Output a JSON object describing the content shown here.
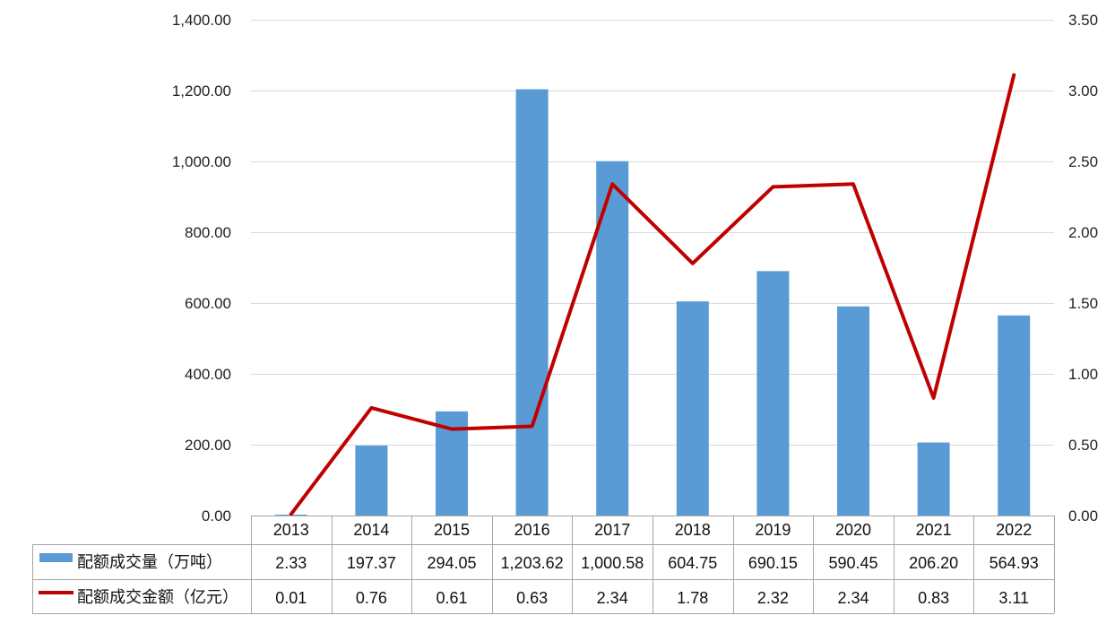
{
  "chart_data": {
    "type": "bar",
    "categories": [
      "2013",
      "2014",
      "2015",
      "2016",
      "2017",
      "2018",
      "2019",
      "2020",
      "2021",
      "2022"
    ],
    "series": [
      {
        "name": "配额成交量（万吨）",
        "type": "bar",
        "axis": "left",
        "color": "#5B9BD5",
        "values": [
          2.33,
          197.37,
          294.05,
          1203.62,
          1000.58,
          604.75,
          690.15,
          590.45,
          206.2,
          564.93
        ],
        "labels": [
          "2.33",
          "197.37",
          "294.05",
          "1,203.62",
          "1,000.58",
          "604.75",
          "690.15",
          "590.45",
          "206.20",
          "564.93"
        ]
      },
      {
        "name": "配额成交金额（亿元）",
        "type": "line",
        "axis": "right",
        "color": "#C00000",
        "values": [
          0.01,
          0.76,
          0.61,
          0.63,
          2.34,
          1.78,
          2.32,
          2.34,
          0.83,
          3.11
        ],
        "labels": [
          "0.01",
          "0.76",
          "0.61",
          "0.63",
          "2.34",
          "1.78",
          "2.32",
          "2.34",
          "0.83",
          "3.11"
        ]
      }
    ],
    "y_left": {
      "lim": [
        0,
        1400
      ],
      "ticks": [
        0,
        200,
        400,
        600,
        800,
        1000,
        1200,
        1400
      ],
      "tick_labels": [
        "0.00",
        "200.00",
        "400.00",
        "600.00",
        "800.00",
        "1,000.00",
        "1,200.00",
        "1,400.00"
      ]
    },
    "y_right": {
      "lim": [
        0,
        3.5
      ],
      "ticks": [
        0,
        0.5,
        1,
        1.5,
        2,
        2.5,
        3,
        3.5
      ],
      "tick_labels": [
        "0.00",
        "0.50",
        "1.00",
        "1.50",
        "2.00",
        "2.50",
        "3.00",
        "3.50"
      ]
    },
    "grid": true,
    "legend": "data-table"
  }
}
